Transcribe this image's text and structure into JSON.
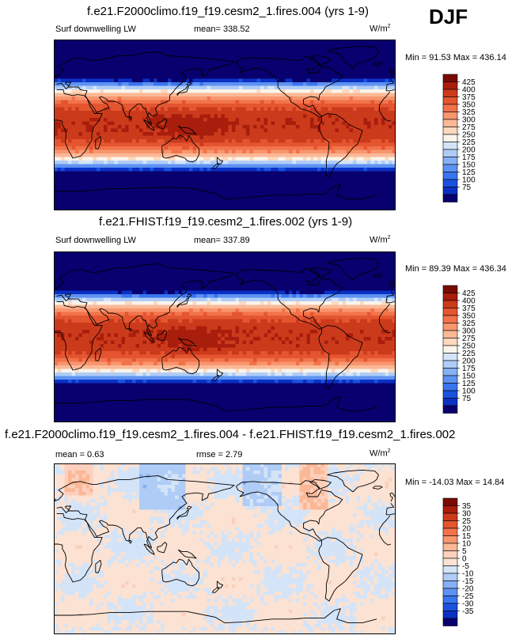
{
  "season": "DJF",
  "units_label": "W/m",
  "units_exp": "2",
  "colors": {
    "abs_scale": [
      "#08006e",
      "#0a30c4",
      "#1a52e0",
      "#3a74ee",
      "#5e92f2",
      "#86b0f4",
      "#aeccf6",
      "#d4e4f8",
      "#fbf4ea",
      "#fcd8bf",
      "#fbb896",
      "#f8966e",
      "#f2734a",
      "#e45530",
      "#cc3a1c",
      "#a81d0c",
      "#7a0a04"
    ],
    "diff_scale": [
      "#08006e",
      "#0a30c4",
      "#1a52e0",
      "#3a74ee",
      "#5e92f2",
      "#86b0f4",
      "#aeccf6",
      "#d4e4f8",
      "#fce2d2",
      "#fcd0bc",
      "#fbb896",
      "#f8966e",
      "#f2734a",
      "#e45530",
      "#cc3a1c",
      "#a81d0c",
      "#7a0a04"
    ],
    "map_border": "#000000",
    "coast": "#000000"
  },
  "chart_data": [
    {
      "type": "heatmap",
      "title": "f.e21.F2000climo.f19_f19.cesm2_1.fires.004 (yrs 1-9)",
      "variable": "Surf downwelling LW",
      "mean_label": "mean= 338.52",
      "min_label": "Min =  91.53",
      "max_label": "Max = 436.14",
      "min": 91.53,
      "max": 436.14,
      "mean": 338.52,
      "colorbar_ticks": [
        "425",
        "400",
        "375",
        "350",
        "325",
        "300",
        "275",
        "250",
        "225",
        "200",
        "175",
        "150",
        "125",
        "100",
        "75"
      ],
      "levels": [
        75,
        100,
        125,
        150,
        175,
        200,
        225,
        250,
        275,
        300,
        325,
        350,
        375,
        400,
        425
      ]
    },
    {
      "type": "heatmap",
      "title": "f.e21.FHIST.f19_f19.cesm2_1.fires.002 (yrs 1-9)",
      "variable": "Surf downwelling LW",
      "mean_label": "mean= 337.89",
      "min_label": "Min =  89.39",
      "max_label": "Max = 436.34",
      "min": 89.39,
      "max": 436.34,
      "mean": 337.89,
      "colorbar_ticks": [
        "425",
        "400",
        "375",
        "350",
        "325",
        "300",
        "275",
        "250",
        "225",
        "200",
        "175",
        "150",
        "125",
        "100",
        "75"
      ],
      "levels": [
        75,
        100,
        125,
        150,
        175,
        200,
        225,
        250,
        275,
        300,
        325,
        350,
        375,
        400,
        425
      ]
    },
    {
      "type": "heatmap",
      "title": "f.e21.F2000climo.f19_f19.cesm2_1.fires.004 - f.e21.FHIST.f19_f19.cesm2_1.fires.002",
      "mean_label": "mean =   0.63",
      "rmse_label": "rmse =   2.79",
      "min_label": "Min = -14.03",
      "max_label": "Max =  14.84",
      "min": -14.03,
      "max": 14.84,
      "mean": 0.63,
      "rmse": 2.79,
      "colorbar_ticks": [
        "35",
        "30",
        "25",
        "20",
        "15",
        "10",
        "5",
        "0",
        "-5",
        "-10",
        "-15",
        "-20",
        "-25",
        "-30",
        "-35"
      ],
      "levels": [
        -35,
        -30,
        -25,
        -20,
        -15,
        -10,
        -5,
        0,
        5,
        10,
        15,
        20,
        25,
        30,
        35
      ]
    }
  ]
}
